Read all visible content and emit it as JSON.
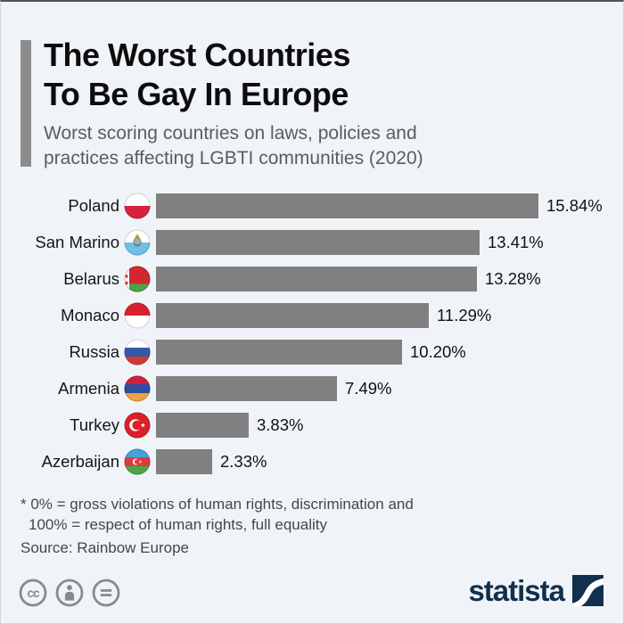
{
  "header": {
    "title_lines": [
      "The Worst Countries",
      "To Be Gay In Europe"
    ],
    "subtitle_lines": [
      "Worst scoring countries on laws, policies and",
      "practices affecting LGBTI communities (2020)"
    ]
  },
  "chart_data": {
    "type": "bar",
    "orientation": "horizontal",
    "title": "The Worst Countries To Be Gay In Europe",
    "subtitle": "Worst scoring countries on laws, policies and practices affecting LGBTI communities (2020)",
    "categories": [
      "Poland",
      "San Marino",
      "Belarus",
      "Monaco",
      "Russia",
      "Armenia",
      "Turkey",
      "Azerbaijan"
    ],
    "values": [
      15.84,
      13.41,
      13.28,
      11.29,
      10.2,
      7.49,
      3.83,
      2.33
    ],
    "value_labels": [
      "15.84%",
      "13.41%",
      "13.28%",
      "11.29%",
      "10.20%",
      "7.49%",
      "3.83%",
      "2.33%"
    ],
    "flags": [
      "poland",
      "san-marino",
      "belarus",
      "monaco",
      "russia",
      "armenia",
      "turkey",
      "azerbaijan"
    ],
    "unit": "%",
    "xlim": [
      0,
      16.2
    ],
    "grid": false,
    "legend": false,
    "bar_color": "#808080"
  },
  "footer": {
    "footnote_lines": [
      "* 0% = gross violations of human rights, discrimination and",
      "100% = respect of human rights, full equality"
    ],
    "source": "Source: Rainbow Europe",
    "brand": "statista",
    "license_icons": [
      "cc-icon",
      "attribution-person-icon",
      "equals-icon"
    ]
  },
  "colors": {
    "background": "#f0f4f8",
    "bar": "#808080",
    "accent_bar": "#8c8c8c",
    "title_text": "#0d0d0d",
    "subtitle_text": "#5c5c5c",
    "footnote_text": "#464646",
    "brand_navy": "#10304d",
    "license_gray": "#848b91"
  }
}
